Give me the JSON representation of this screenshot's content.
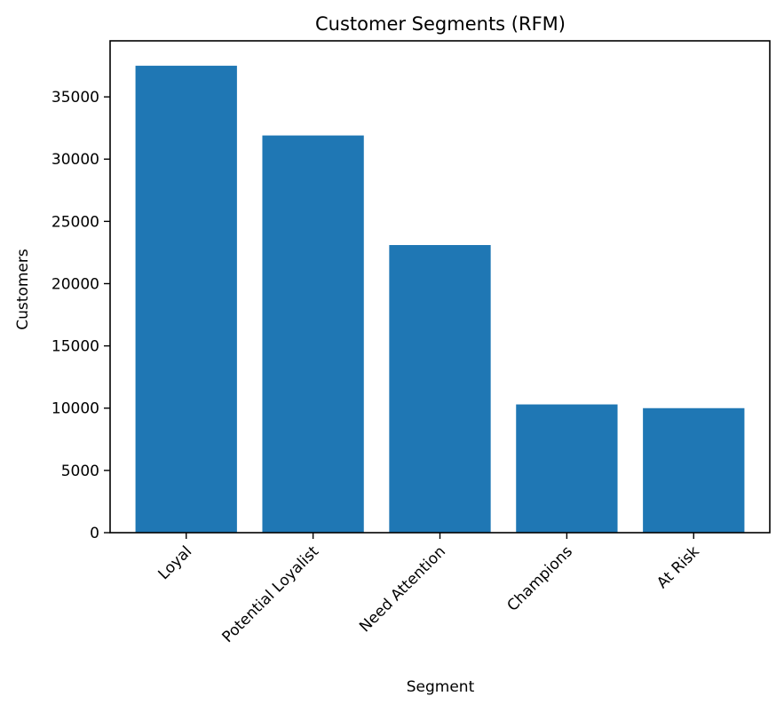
{
  "chart_data": {
    "type": "bar",
    "title": "Customer Segments (RFM)",
    "xlabel": "Segment",
    "ylabel": "Customers",
    "categories": [
      "Loyal",
      "Potential Loyalist",
      "Need Attention",
      "Champions",
      "At Risk"
    ],
    "values": [
      37500,
      31900,
      23100,
      10300,
      10000
    ],
    "ylim": [
      0,
      39500
    ],
    "yticks": [
      0,
      5000,
      10000,
      15000,
      20000,
      25000,
      30000,
      35000
    ],
    "ytick_labels": [
      "0",
      "5000",
      "10000",
      "15000",
      "20000",
      "25000",
      "30000",
      "35000"
    ],
    "bar_color": "#1f77b4",
    "grid": false,
    "legend": "none"
  }
}
